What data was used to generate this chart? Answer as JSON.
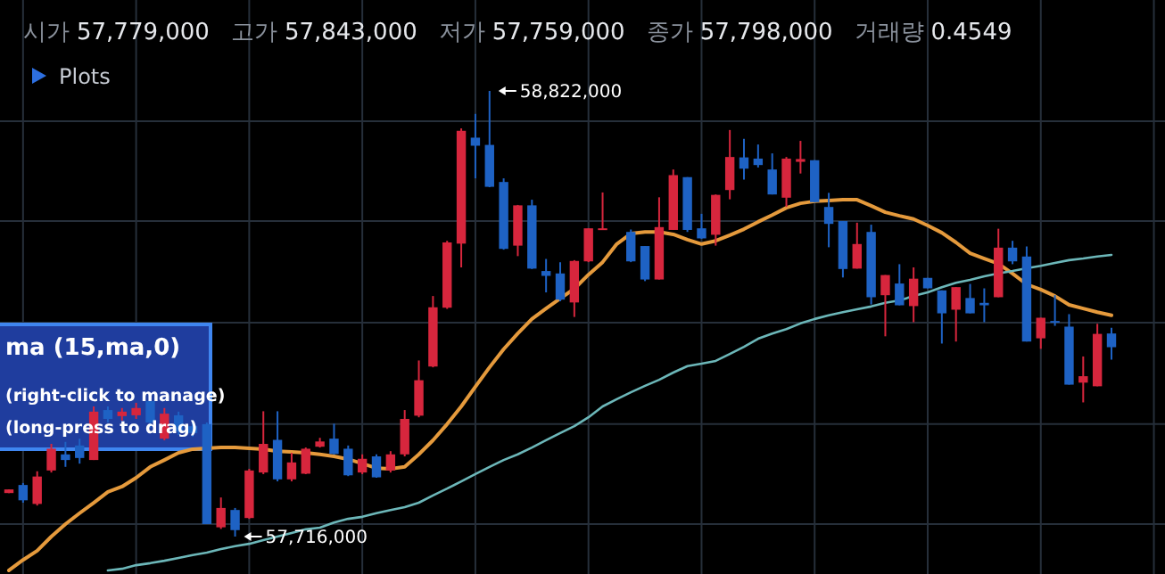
{
  "chart_data": {
    "type": "candlestick",
    "categories": [
      null,
      null,
      null,
      null,
      null,
      null,
      null,
      null,
      null,
      null,
      null,
      null,
      null,
      null,
      null,
      null,
      null,
      null,
      null,
      null,
      null,
      null,
      null,
      null,
      null,
      null,
      null,
      null,
      null,
      null,
      null,
      null,
      null,
      null,
      null,
      null,
      null,
      null,
      null,
      null,
      null,
      null,
      null,
      null,
      null,
      null,
      null,
      null,
      null,
      null,
      null,
      null,
      null,
      null,
      null,
      null,
      null,
      null,
      null,
      null,
      null,
      null,
      null,
      null,
      null,
      null,
      null,
      null,
      null,
      null,
      null,
      null,
      null,
      null,
      null,
      null,
      null,
      null,
      null
    ],
    "ohlc": [
      [
        57824000,
        57833000,
        57824000,
        57833000
      ],
      [
        57844000,
        57849000,
        57800000,
        57806000
      ],
      [
        57797000,
        57878000,
        57793000,
        57865000
      ],
      [
        57880000,
        57946000,
        57875000,
        57934000
      ],
      [
        57920000,
        57951000,
        57889000,
        57906000
      ],
      [
        57942000,
        57959000,
        57897000,
        57911000
      ],
      [
        57906000,
        58039000,
        57906000,
        58026000
      ],
      [
        58030000,
        58039000,
        57999000,
        58008000
      ],
      [
        58015000,
        58035000,
        58004000,
        58026000
      ],
      [
        58017000,
        58048000,
        58008000,
        58035000
      ],
      [
        58052000,
        58066000,
        57986000,
        57999000
      ],
      [
        57959000,
        58035000,
        57955000,
        58021000
      ],
      [
        58017000,
        58026000,
        57968000,
        57977000
      ],
      [
        57990000,
        58004000,
        57964000,
        57973000
      ],
      [
        57995000,
        57999000,
        57747000,
        57747000
      ],
      [
        57739000,
        57813000,
        57735000,
        57787000
      ],
      [
        57782000,
        57787000,
        57716000,
        57732000
      ],
      [
        57762000,
        57884000,
        57760000,
        57880000
      ],
      [
        57875000,
        58027000,
        57871000,
        57946000
      ],
      [
        57956000,
        58027000,
        57853000,
        57858000
      ],
      [
        57858000,
        57924000,
        57853000,
        57900000
      ],
      [
        57872000,
        57937000,
        57871000,
        57934000
      ],
      [
        57939000,
        57961000,
        57937000,
        57952000
      ],
      [
        57959000,
        57996000,
        57920000,
        57921000
      ],
      [
        57934000,
        57942000,
        57866000,
        57868000
      ],
      [
        57875000,
        57920000,
        57871000,
        57909000
      ],
      [
        57915000,
        57920000,
        57862000,
        57863000
      ],
      [
        57880000,
        57928000,
        57875000,
        57920000
      ],
      [
        57920000,
        58030000,
        57915000,
        58008000
      ],
      [
        58016000,
        58153000,
        58012000,
        58104000
      ],
      [
        58138000,
        58313000,
        58136000,
        58285000
      ],
      [
        58284000,
        58450000,
        58281000,
        58446000
      ],
      [
        58443000,
        58729000,
        58384000,
        58723000
      ],
      [
        58706000,
        58765000,
        58605000,
        58686000
      ],
      [
        58688000,
        58822000,
        58583000,
        58584000
      ],
      [
        58596000,
        58605000,
        58428000,
        58430000
      ],
      [
        58438000,
        58539000,
        58412000,
        58538000
      ],
      [
        58538000,
        58552000,
        58380000,
        58381000
      ],
      [
        58375000,
        58405000,
        58322000,
        58363000
      ],
      [
        58369000,
        58397000,
        58300000,
        58304000
      ],
      [
        58297000,
        58402000,
        58261000,
        58400000
      ],
      [
        58399000,
        58481000,
        58397000,
        58481000
      ],
      [
        58477000,
        58570000,
        58477000,
        58481000
      ],
      null,
      [
        58472000,
        58478000,
        58397000,
        58399000
      ],
      [
        58437000,
        58437000,
        58350000,
        58354000
      ],
      [
        58354000,
        58558000,
        58354000,
        58484000
      ],
      [
        58477000,
        58627000,
        58477000,
        58613000
      ],
      [
        58608000,
        58608000,
        58472000,
        58477000
      ],
      [
        58481000,
        58517000,
        58455000,
        58456000
      ],
      [
        58465000,
        58565000,
        58438000,
        58564000
      ],
      [
        58576000,
        58725000,
        58553000,
        58658000
      ],
      [
        58657000,
        58703000,
        58602000,
        58629000
      ],
      [
        58654000,
        58689000,
        58632000,
        58638000
      ],
      [
        58627000,
        58667000,
        58565000,
        58565000
      ],
      [
        58557000,
        58658000,
        58534000,
        58654000
      ],
      [
        58646000,
        58698000,
        58617000,
        58653000
      ],
      [
        58650000,
        58650000,
        58546000,
        58546000
      ],
      [
        58534000,
        58569000,
        58434000,
        58492000
      ],
      [
        58499000,
        58499000,
        58359000,
        58380000
      ],
      [
        58381000,
        58495000,
        58381000,
        58442000
      ],
      [
        58472000,
        58490000,
        58292000,
        58310000
      ],
      [
        58315000,
        58365000,
        58213000,
        58365000
      ],
      [
        58344000,
        58392000,
        58290000,
        58290000
      ],
      [
        58288000,
        58384000,
        58248000,
        58356000
      ],
      [
        58358000,
        58358000,
        58332000,
        58332000
      ],
      [
        58327000,
        58327000,
        58195000,
        58270000
      ],
      [
        58279000,
        58335000,
        58200000,
        58335000
      ],
      [
        58308000,
        58343000,
        58270000,
        58270000
      ],
      [
        58296000,
        58332000,
        58248000,
        58290000
      ],
      [
        58310000,
        58480000,
        58310000,
        58433000
      ],
      [
        58433000,
        58450000,
        58392000,
        58399000
      ],
      [
        58411000,
        58436000,
        58200000,
        58200000
      ],
      [
        58208000,
        58259000,
        58182000,
        58259000
      ],
      [
        58251000,
        58315000,
        58239000,
        58247000
      ],
      [
        58237000,
        58268000,
        58093000,
        58093000
      ],
      [
        58098000,
        58163000,
        58049000,
        58114000
      ],
      [
        58089000,
        58244000,
        58089000,
        58219000
      ],
      [
        58220000,
        58234000,
        58155000,
        58186000
      ]
    ],
    "colors": [
      "#d7263d",
      "#1e62c4",
      "#d7263d",
      "#d7263d",
      "#1e62c4",
      "#1e62c4",
      "#d7263d",
      "#1e62c4",
      "#d7263d",
      "#d7263d",
      "#1e62c4",
      "#d7263d",
      "#1e62c4",
      "#1e62c4",
      "#1e62c4",
      "#d7263d",
      "#1e62c4",
      "#d7263d",
      "#d7263d",
      "#1e62c4",
      "#d7263d",
      "#d7263d",
      "#d7263d",
      "#1e62c4",
      "#1e62c4",
      "#d7263d",
      "#1e62c4",
      "#d7263d",
      "#d7263d",
      "#d7263d",
      "#d7263d",
      "#d7263d",
      "#d7263d",
      "#1e62c4",
      "#1e62c4",
      "#1e62c4",
      "#d7263d",
      "#1e62c4",
      "#1e62c4",
      "#1e62c4",
      "#d7263d",
      "#d7263d",
      "#d7263d",
      null,
      "#1e62c4",
      "#1e62c4",
      "#d7263d",
      "#d7263d",
      "#1e62c4",
      "#1e62c4",
      "#d7263d",
      "#d7263d",
      "#1e62c4",
      "#1e62c4",
      "#1e62c4",
      "#d7263d",
      "#d7263d",
      "#1e62c4",
      "#1e62c4",
      "#1e62c4",
      "#d7263d",
      "#1e62c4",
      "#d7263d",
      "#1e62c4",
      "#d7263d",
      "#1e62c4",
      "#1e62c4",
      "#d7263d",
      "#1e62c4",
      "#1e62c4",
      "#d7263d",
      "#1e62c4",
      "#1e62c4",
      "#d7263d",
      "#1e62c4",
      "#1e62c4",
      "#d7263d",
      "#d7263d",
      "#1e62c4"
    ],
    "series": [
      {
        "type": "line",
        "color": "#e59a3c",
        "values": [
          57632000,
          57658000,
          57681000,
          57716000,
          57747000,
          57774000,
          57800000,
          57827000,
          57840000,
          57862000,
          57889000,
          57906000,
          57924000,
          57933000,
          57935000,
          57937000,
          57937000,
          57935000,
          57933000,
          57928000,
          57926000,
          57924000,
          57920000,
          57915000,
          57908000,
          57897000,
          57886000,
          57884000,
          57889000,
          57920000,
          57955000,
          57995000,
          58039000,
          58088000,
          58136000,
          58181000,
          58220000,
          58256000,
          58282000,
          58307000,
          58331000,
          58366000,
          58397000,
          58442000,
          58468000,
          58472000,
          58472000,
          58466000,
          58453000,
          58442000,
          58450000,
          58464000,
          58479000,
          58497000,
          58514000,
          58532000,
          58543000,
          58548000,
          58550000,
          58552000,
          58552000,
          58537000,
          58521000,
          58512000,
          58504000,
          58488000,
          58470000,
          58446000,
          58419000,
          58406000,
          58393000,
          58369000,
          58342000,
          58329000,
          58313000,
          58291000,
          58282000,
          58273000,
          58265000
        ]
      },
      {
        "type": "line",
        "color": "#6cb7b9",
        "values": [
          null,
          null,
          null,
          null,
          null,
          null,
          null,
          57632000,
          57636000,
          57645000,
          57650000,
          57656000,
          57663000,
          57670000,
          57676000,
          57685000,
          57692000,
          57698000,
          57707000,
          57716000,
          57725000,
          57734000,
          57738000,
          57751000,
          57760000,
          57765000,
          57774000,
          57782000,
          57789000,
          57800000,
          57818000,
          57835000,
          57853000,
          57871000,
          57889000,
          57906000,
          57920000,
          57937000,
          57955000,
          57973000,
          57990000,
          58012000,
          58039000,
          58057000,
          58074000,
          58090000,
          58105000,
          58123000,
          58139000,
          58145000,
          58152000,
          58169000,
          58187000,
          58207000,
          58220000,
          58231000,
          58245000,
          58256000,
          58265000,
          58273000,
          58280000,
          58287000,
          58296000,
          58302000,
          58313000,
          58322000,
          58335000,
          58346000,
          58353000,
          58362000,
          58369000,
          58375000,
          58382000,
          58388000,
          58395000,
          58402000,
          58406000,
          58411000,
          58415000
        ]
      }
    ],
    "yticks": [
      {
        "value": 58747000,
        "label": null
      },
      {
        "value": 58499000,
        "label": null
      },
      {
        "value": 58247000,
        "label": null
      },
      {
        "value": 57995000,
        "label": null
      },
      {
        "value": 57747000,
        "label": null
      }
    ],
    "grid": true,
    "annotations": [
      "시가",
      "57,779,000",
      "고가",
      "57,843,000",
      "저가",
      "57,759,000",
      "종가",
      "57,798,000",
      "거래량",
      "0.4549",
      "Plots",
      "ma (15,ma,0)",
      "(right-click to manage)",
      "(long-press to drag)",
      "58,822,000",
      "57,716,000"
    ]
  }
}
